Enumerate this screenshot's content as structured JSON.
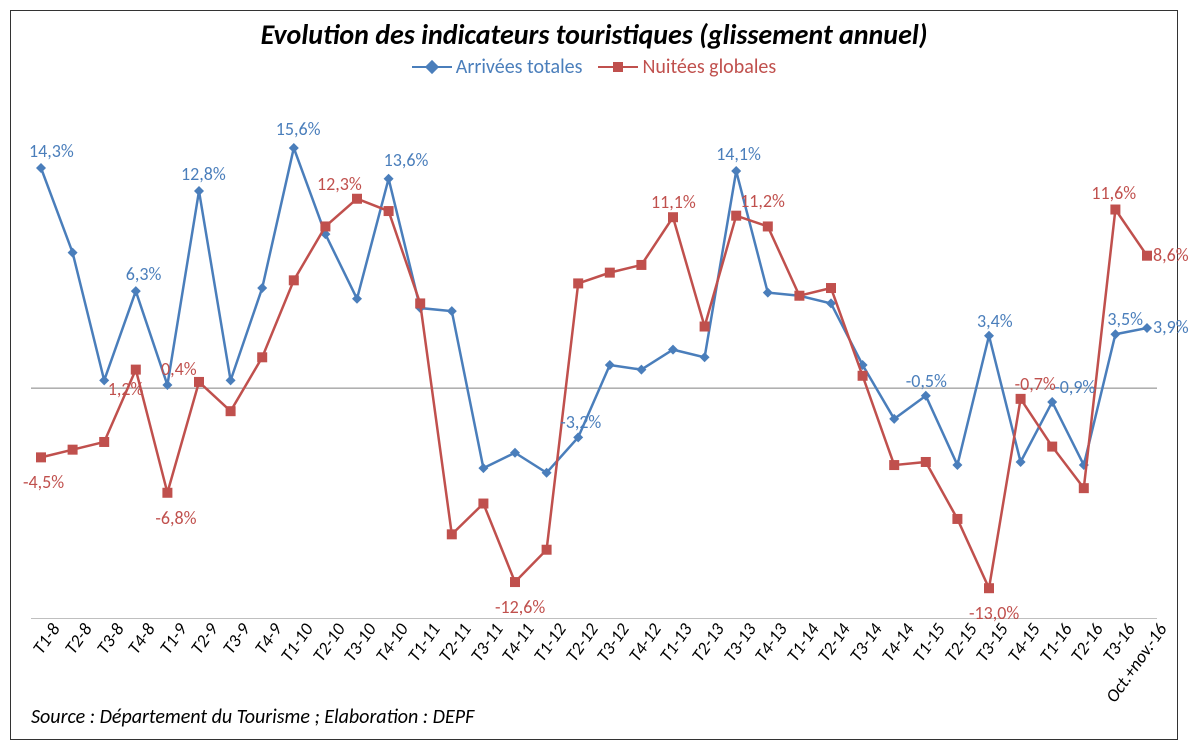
{
  "chart": {
    "type": "line",
    "title": "Evolution des indicateurs touristiques (glissement annuel)",
    "title_fontsize": 28,
    "title_color": "#000000",
    "background_color": "#ffffff",
    "border_color": "#333333",
    "axis_color": "#7f7f7f",
    "zero_line_color": "#808080",
    "ylim": [
      -15,
      18
    ],
    "legend_fontsize": 20,
    "xlabel_fontsize": 18,
    "xlabel_rotation": -55,
    "datalabel_fontsize": 18,
    "categories": [
      "T1-8",
      "T2-8",
      "T3-8",
      "T4-8",
      "T1-9",
      "T2-9",
      "T3-9",
      "T4-9",
      "T1-10",
      "T2-10",
      "T3-10",
      "T4-10",
      "T1-11",
      "T2-11",
      "T3-11",
      "T4-11",
      "T1-12",
      "T2-12",
      "T3-12",
      "T4-12",
      "T1-13",
      "T2-13",
      "T3-13",
      "T4-13",
      "T1-14",
      "T2-14",
      "T3-14",
      "T4-14",
      "T1-15",
      "T2-15",
      "T3-15",
      "T4-15",
      "T1-16",
      "T2-16",
      "T3-16",
      "Oct.+nov.-16"
    ],
    "series": [
      {
        "name": "Arrivées totales",
        "color": "#4a7ebb",
        "marker": "diamond",
        "marker_size": 10,
        "line_width": 2.5,
        "values": [
          14.3,
          8.8,
          0.5,
          6.3,
          0.2,
          12.8,
          0.5,
          6.5,
          15.6,
          10.0,
          5.8,
          13.6,
          5.2,
          5.0,
          -5.2,
          -4.2,
          -5.5,
          -3.2,
          1.5,
          1.2,
          2.5,
          2.0,
          14.1,
          6.2,
          6.0,
          5.5,
          1.5,
          -2.0,
          -0.5,
          -5.0,
          3.4,
          -4.8,
          -0.9,
          -5.0,
          3.5,
          3.9
        ],
        "data_labels": [
          {
            "i": 0,
            "text": "14,3%",
            "dx": -12,
            "dy": -28
          },
          {
            "i": 3,
            "text": "6,3%",
            "dx": -10,
            "dy": -28
          },
          {
            "i": 5,
            "text": "12,8%",
            "dx": -18,
            "dy": -28
          },
          {
            "i": 8,
            "text": "15,6%",
            "dx": -18,
            "dy": -30
          },
          {
            "i": 11,
            "text": "13,6%",
            "dx": -5,
            "dy": -30
          },
          {
            "i": 17,
            "text": "-3,2%",
            "dx": -18,
            "dy": -26
          },
          {
            "i": 22,
            "text": "14,1%",
            "dx": -20,
            "dy": -28
          },
          {
            "i": 28,
            "text": "-0,5%",
            "dx": -20,
            "dy": -26
          },
          {
            "i": 30,
            "text": "3,4%",
            "dx": -12,
            "dy": -26
          },
          {
            "i": 32,
            "text": "-0,9%",
            "dx": 2,
            "dy": -26
          },
          {
            "i": 34,
            "text": "3,5%",
            "dx": -8,
            "dy": -26
          },
          {
            "i": 35,
            "text": "3,9%",
            "dx": 6,
            "dy": -12
          }
        ]
      },
      {
        "name": "Nuitées globales",
        "color": "#c0504d",
        "marker": "square",
        "marker_size": 10,
        "line_width": 2.5,
        "values": [
          -4.5,
          -4.0,
          -3.5,
          1.2,
          -6.8,
          0.4,
          -1.5,
          2.0,
          7.0,
          10.5,
          12.3,
          11.5,
          5.5,
          -9.5,
          -7.5,
          -12.6,
          -10.5,
          6.8,
          7.5,
          8.0,
          11.1,
          4.0,
          11.2,
          10.5,
          6.0,
          6.5,
          0.8,
          -5.0,
          -4.8,
          -8.5,
          -13.0,
          -0.7,
          -3.8,
          -6.5,
          11.6,
          8.6
        ],
        "data_labels": [
          {
            "i": 0,
            "text": "-4,5%",
            "dx": -18,
            "dy": 14
          },
          {
            "i": 3,
            "text": "1,2%",
            "dx": -28,
            "dy": 8
          },
          {
            "i": 4,
            "text": "-6,8%",
            "dx": -12,
            "dy": 14
          },
          {
            "i": 5,
            "text": "0,4%",
            "dx": -38,
            "dy": -24
          },
          {
            "i": 10,
            "text": "12,3%",
            "dx": -40,
            "dy": -26
          },
          {
            "i": 15,
            "text": "-12,6%",
            "dx": -20,
            "dy": 14
          },
          {
            "i": 20,
            "text": "11,1%",
            "dx": -22,
            "dy": -26
          },
          {
            "i": 22,
            "text": "11,2%",
            "dx": 4,
            "dy": -26
          },
          {
            "i": 30,
            "text": "-13,0%",
            "dx": -20,
            "dy": 14
          },
          {
            "i": 31,
            "text": "-0,7%",
            "dx": -6,
            "dy": -26
          },
          {
            "i": 34,
            "text": "11,6%",
            "dx": -24,
            "dy": -28
          },
          {
            "i": 35,
            "text": "8,6%",
            "dx": 6,
            "dy": -12
          }
        ]
      }
    ],
    "source_text": "Source : Département du Tourisme ;  Elaboration : DEPF"
  }
}
